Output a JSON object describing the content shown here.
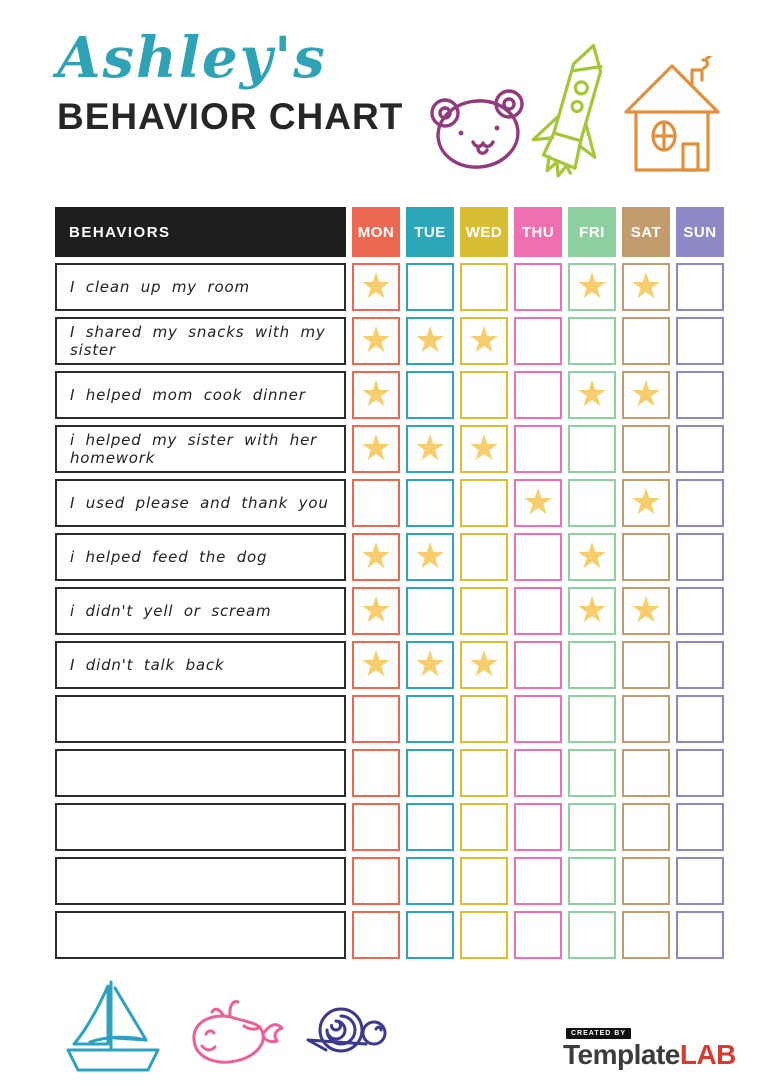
{
  "page": {
    "title_script": "Ashley's",
    "title_main": "BEHAVIOR CHART"
  },
  "decorations": {
    "top_icons": [
      "bear-icon",
      "rocket-icon",
      "house-icon"
    ],
    "bottom_icons": [
      "sailboat-icon",
      "whale-icon",
      "snail-icon"
    ]
  },
  "colors": {
    "title_script": "#2fa3b5",
    "title_main": "#262626",
    "behaviors_header_bg": "#1e1e1e",
    "behavior_cell_border": "#2b2b2b",
    "star": "#f7ce6e",
    "bear": "#93397e",
    "rocket": "#a5c637",
    "house": "#e2903c",
    "sailboat": "#2ba3c0",
    "whale": "#ed5f9b",
    "snail": "#3b3a8f",
    "logo_dark": "#3c3c3c",
    "logo_red": "#d63b30"
  },
  "table": {
    "behaviors_header": "BEHAVIORS",
    "star_glyph": "★",
    "days": [
      {
        "label": "MON",
        "color": "#ec6852"
      },
      {
        "label": "TUE",
        "color": "#2ca6b8"
      },
      {
        "label": "WED",
        "color": "#d9bd35"
      },
      {
        "label": "THU",
        "color": "#ef6fb0"
      },
      {
        "label": "FRI",
        "color": "#8fd0a1"
      },
      {
        "label": "SAT",
        "color": "#c29c6d"
      },
      {
        "label": "SUN",
        "color": "#8d89c6"
      }
    ],
    "rows": [
      {
        "behavior": "I clean up my room",
        "stars": [
          "MON",
          "FRI",
          "SAT"
        ]
      },
      {
        "behavior": "I shared my snacks with my sister",
        "stars": [
          "MON",
          "TUE",
          "WED"
        ]
      },
      {
        "behavior": "I helped mom cook dinner",
        "stars": [
          "MON",
          "FRI",
          "SAT"
        ]
      },
      {
        "behavior": "i helped my sister with her homework",
        "stars": [
          "MON",
          "TUE",
          "WED"
        ]
      },
      {
        "behavior": "I used please and thank you",
        "stars": [
          "THU",
          "SAT"
        ]
      },
      {
        "behavior": "i helped feed the dog",
        "stars": [
          "MON",
          "TUE",
          "FRI"
        ]
      },
      {
        "behavior": "i didn't yell or scream",
        "stars": [
          "MON",
          "FRI",
          "SAT"
        ]
      },
      {
        "behavior": "I didn't talk back",
        "stars": [
          "MON",
          "TUE",
          "WED"
        ]
      },
      {
        "behavior": "",
        "stars": []
      },
      {
        "behavior": "",
        "stars": []
      },
      {
        "behavior": "",
        "stars": []
      },
      {
        "behavior": "",
        "stars": []
      },
      {
        "behavior": "",
        "stars": []
      }
    ]
  },
  "footer": {
    "created_by": "CREATED BY",
    "brand_name": "Template",
    "brand_suffix": "LAB"
  }
}
